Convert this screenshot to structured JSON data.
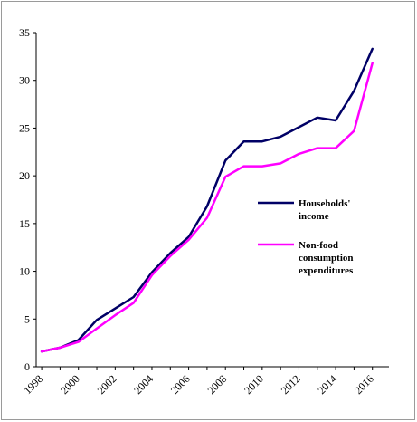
{
  "chart_data": {
    "type": "line",
    "title": "",
    "xlabel": "",
    "ylabel": "",
    "ylim": [
      0,
      35
    ],
    "y_ticks": [
      "0",
      "5",
      "10",
      "15",
      "20",
      "25",
      "30",
      "35"
    ],
    "x_ticks": [
      "1998",
      "2000",
      "2002",
      "2004",
      "2006",
      "2008",
      "2010",
      "2012",
      "2014",
      "2016"
    ],
    "x": [
      1998,
      1999,
      2000,
      2001,
      2002,
      2003,
      2004,
      2005,
      2006,
      2007,
      2008,
      2009,
      2010,
      2011,
      2012,
      2013,
      2014,
      2015,
      2016
    ],
    "series": [
      {
        "name": "Households' income",
        "legend_lines": [
          "Households'",
          "income"
        ],
        "color": "#000066",
        "values": [
          1.6,
          2.0,
          2.8,
          4.9,
          6.1,
          7.3,
          9.9,
          11.9,
          13.6,
          16.8,
          21.6,
          23.6,
          23.6,
          24.1,
          25.1,
          26.1,
          25.8,
          28.9,
          33.3
        ]
      },
      {
        "name": "Non-food consumption expenditures",
        "legend_lines": [
          "Non-food",
          "consumption",
          "expenditures"
        ],
        "color": "#ff00ff",
        "values": [
          1.6,
          2.0,
          2.6,
          4.0,
          5.4,
          6.7,
          9.6,
          11.6,
          13.3,
          15.6,
          19.9,
          21.0,
          21.0,
          21.3,
          22.3,
          22.9,
          22.9,
          24.7,
          31.8
        ]
      }
    ],
    "grid": false,
    "legend_position": "center-right"
  }
}
